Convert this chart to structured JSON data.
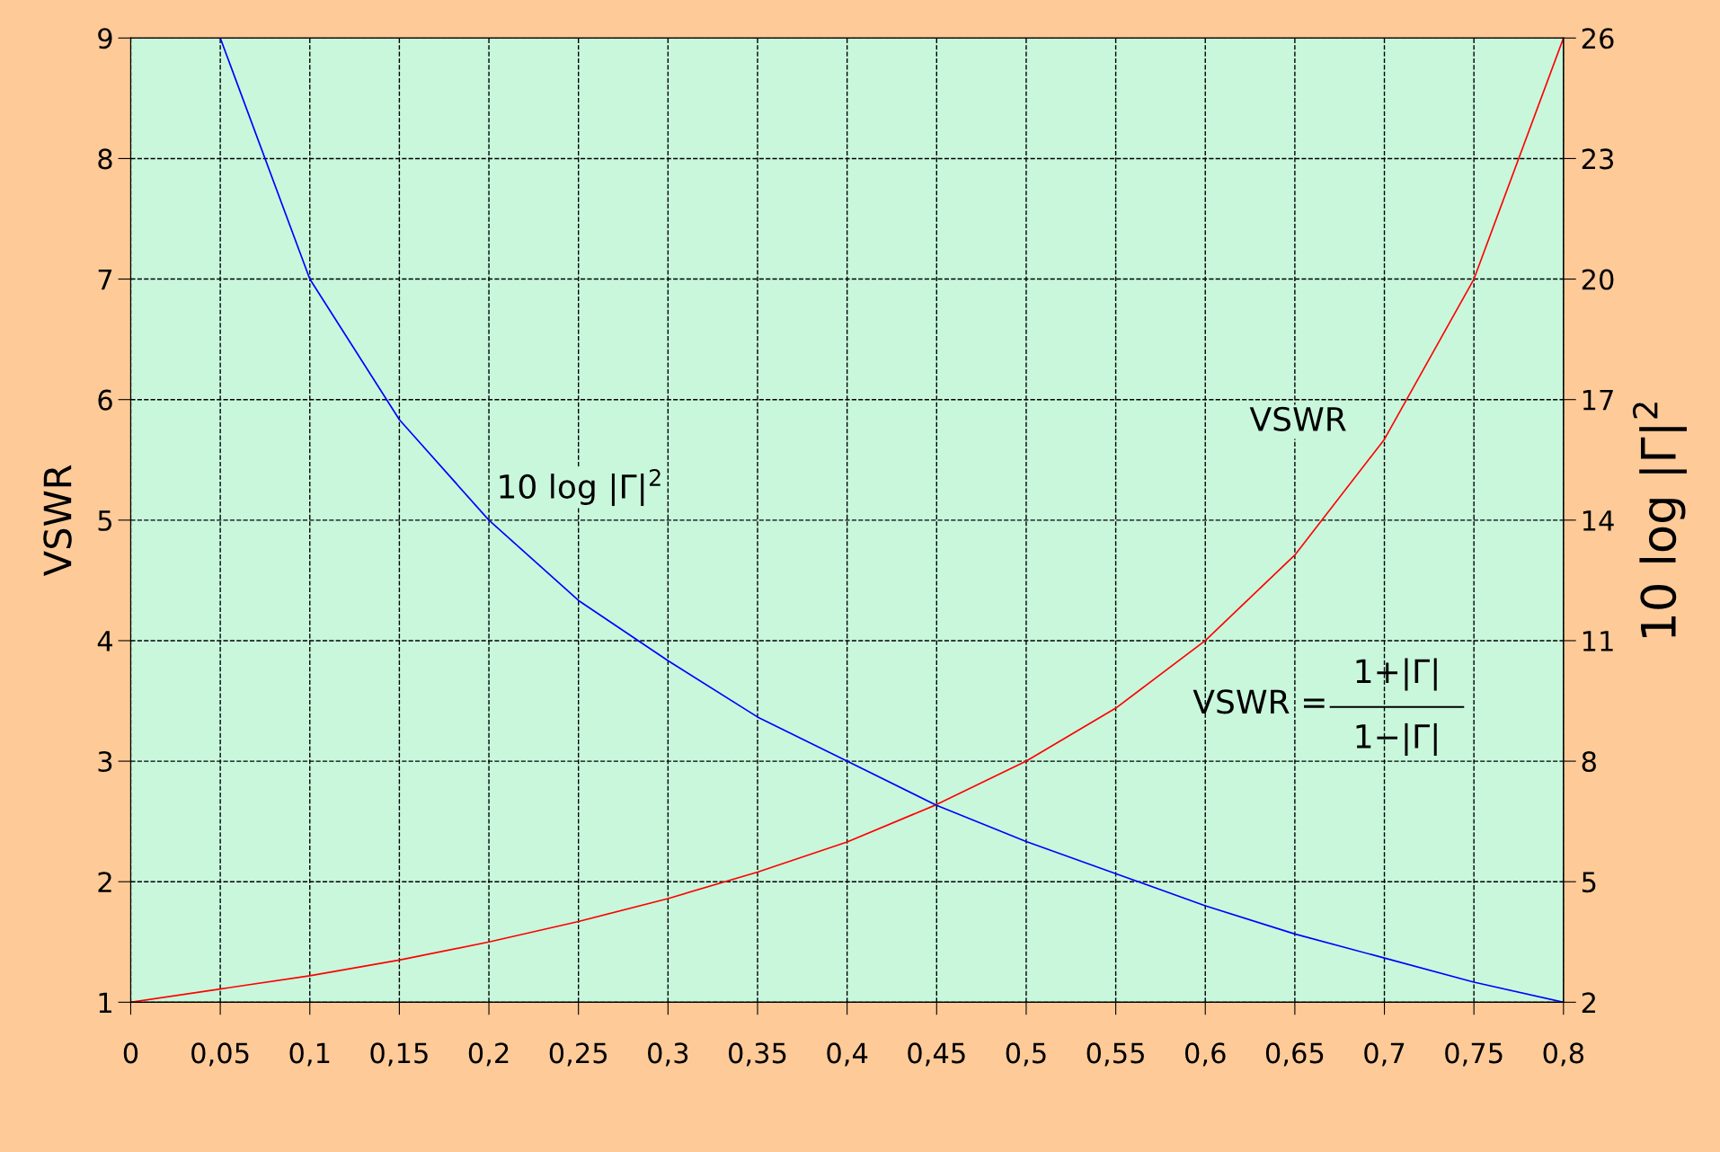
{
  "chart_data": {
    "type": "line",
    "xlabel": null,
    "ylabel": "VSWR",
    "y2label": "10 log |Γ|$^{2}$",
    "x": [
      0,
      0.05,
      0.1,
      0.15,
      0.2,
      0.25,
      0.3,
      0.35,
      0.4,
      0.45,
      0.5,
      0.55,
      0.6,
      0.65,
      0.7,
      0.75,
      0.8
    ],
    "series": [
      {
        "name": "VSWR",
        "color": "#ff0000",
        "values": [
          1,
          1.11,
          1.22,
          1.35,
          1.5,
          1.67,
          1.86,
          2.08,
          2.33,
          2.64,
          3,
          3.44,
          4,
          4.71,
          5.67,
          7,
          9
        ]
      },
      {
        "name": "10 log |Γ|$^{2}$",
        "color": "#0000ff",
        "axis": "y2",
        "values": [
          null,
          26.0,
          20.0,
          16.5,
          14.0,
          12.0,
          10.5,
          9.1,
          8.0,
          6.9,
          6.0,
          5.2,
          4.4,
          3.7,
          3.1,
          2.5,
          2.0
        ]
      }
    ],
    "xlim": [
      0,
      0.8
    ],
    "xticks": [
      0,
      {
        "value": 0.05,
        "label": "0,05"
      },
      {
        "value": 0.1,
        "label": "0,1"
      },
      {
        "value": 0.15,
        "label": "0,15"
      },
      {
        "value": 0.2,
        "label": "0,2"
      },
      {
        "value": 0.25,
        "label": "0,25"
      },
      {
        "value": 0.3,
        "label": "0,3"
      },
      {
        "value": 0.35,
        "label": "0,35"
      },
      {
        "value": 0.4,
        "label": "0,4"
      },
      {
        "value": 0.45,
        "label": "0,45"
      },
      {
        "value": 0.5,
        "label": "0,5"
      },
      {
        "value": 0.55,
        "label": "0,55"
      },
      {
        "value": 0.6,
        "label": "0,6"
      },
      {
        "value": 0.65,
        "label": "0,65"
      },
      {
        "value": 0.7,
        "label": "0,7"
      },
      {
        "value": 0.75,
        "label": "0,75"
      },
      {
        "value": 0.8,
        "label": "0,8"
      }
    ],
    "ylim": [
      1,
      9
    ],
    "yticks": [
      1,
      2,
      3,
      4,
      5,
      6,
      7,
      8,
      9
    ],
    "y2lim": [
      2,
      26
    ],
    "y2ticks": [
      2,
      5,
      8,
      11,
      14,
      17,
      20,
      23,
      26
    ],
    "grid": true,
    "line_style": "solid",
    "marker": "none",
    "legend": false,
    "annotations": [
      "VSWR =",
      "1+|Γ|",
      "1−|Γ|"
    ]
  }
}
